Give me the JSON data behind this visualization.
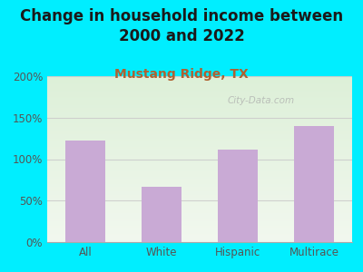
{
  "title": "Change in household income between\n2000 and 2022",
  "subtitle": "Mustang Ridge, TX",
  "categories": [
    "All",
    "White",
    "Hispanic",
    "Multirace"
  ],
  "values": [
    122,
    67,
    112,
    140
  ],
  "bar_color": "#c9aad5",
  "bar_edge_color": "#b090c0",
  "ylim": [
    0,
    200
  ],
  "yticks": [
    0,
    50,
    100,
    150,
    200
  ],
  "ytick_labels": [
    "0%",
    "50%",
    "100%",
    "150%",
    "200%"
  ],
  "background_outer": "#00eeff",
  "background_inner_top": "#ddf0d8",
  "background_inner_bottom": "#f2f8ef",
  "title_fontsize": 12,
  "subtitle_fontsize": 10,
  "subtitle_color": "#b06030",
  "watermark": "City-Data.com",
  "watermark_color": "#aaaaaa",
  "title_color": "#1a1a1a",
  "tick_color": "#555555",
  "grid_color": "#cccccc"
}
